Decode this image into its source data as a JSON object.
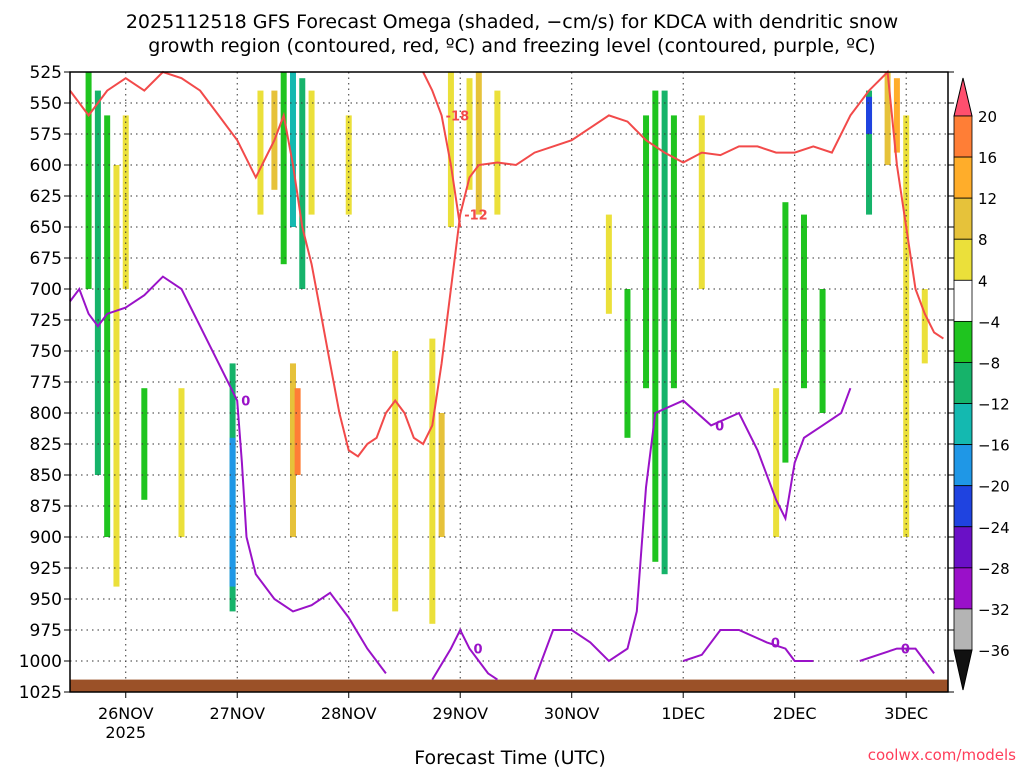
{
  "chart_data": {
    "type": "heatmap",
    "title_line1": "2025112518 GFS Forecast Omega (shaded, −cm/s) for KDCA with dendritic snow",
    "title_line2": "growth region (contoured, red, ºC) and freezing level (contoured, purple, ºC)",
    "xlabel": "Forecast Time (UTC)",
    "credit": "coolwx.com/models",
    "x_ticks": [
      "26NOV",
      "27NOV",
      "28NOV",
      "29NOV",
      "30NOV",
      "1DEC",
      "2DEC",
      "3DEC"
    ],
    "x_year_label": "2025",
    "x_range_hours": [
      -12,
      177
    ],
    "y_ticks": [
      525,
      550,
      575,
      600,
      625,
      650,
      675,
      700,
      725,
      750,
      775,
      800,
      825,
      850,
      875,
      900,
      925,
      950,
      975,
      1000,
      1025
    ],
    "y_range_hpa": [
      525,
      1025
    ],
    "colorbar": {
      "labels": [
        20,
        16,
        12,
        8,
        4,
        -4,
        -8,
        -12,
        -16,
        -20,
        -24,
        -28,
        -32,
        -36
      ],
      "colors": [
        "#ff4f6e",
        "#ff7e36",
        "#ffad2a",
        "#e6c23a",
        "#ebe03a",
        "#ffffff",
        "#1fc41f",
        "#16b36a",
        "#14b9b0",
        "#1f97e6",
        "#1f43e0",
        "#6a10c6",
        "#9a10c9",
        "#b4b4b4",
        "#111111"
      ]
    },
    "omega_cells": [
      {
        "h": -8,
        "p0": 525,
        "p1": 700,
        "v": -8
      },
      {
        "h": -6,
        "p0": 540,
        "p1": 850,
        "v": -12
      },
      {
        "h": -4,
        "p0": 560,
        "p1": 900,
        "v": -8
      },
      {
        "h": -2,
        "p0": 600,
        "p1": 940,
        "v": 4
      },
      {
        "h": 0,
        "p0": 560,
        "p1": 700,
        "v": 4
      },
      {
        "h": 4,
        "p0": 780,
        "p1": 870,
        "v": -8
      },
      {
        "h": 12,
        "p0": 780,
        "p1": 900,
        "v": 4
      },
      {
        "h": 23,
        "p0": 760,
        "p1": 960,
        "v": -12
      },
      {
        "h": 23,
        "p0": 820,
        "p1": 940,
        "v": -20
      },
      {
        "h": 29,
        "p0": 540,
        "p1": 640,
        "v": 4
      },
      {
        "h": 32,
        "p0": 540,
        "p1": 620,
        "v": 8
      },
      {
        "h": 34,
        "p0": 525,
        "p1": 680,
        "v": -8
      },
      {
        "h": 36,
        "p0": 525,
        "p1": 650,
        "v": -16
      },
      {
        "h": 38,
        "p0": 530,
        "p1": 700,
        "v": -12
      },
      {
        "h": 36,
        "p0": 760,
        "p1": 900,
        "v": 8
      },
      {
        "h": 37,
        "p0": 780,
        "p1": 850,
        "v": 16
      },
      {
        "h": 40,
        "p0": 540,
        "p1": 640,
        "v": 4
      },
      {
        "h": 48,
        "p0": 560,
        "p1": 640,
        "v": 4
      },
      {
        "h": 58,
        "p0": 750,
        "p1": 960,
        "v": 4
      },
      {
        "h": 66,
        "p0": 740,
        "p1": 970,
        "v": 4
      },
      {
        "h": 68,
        "p0": 800,
        "p1": 900,
        "v": 8
      },
      {
        "h": 70,
        "p0": 525,
        "p1": 650,
        "v": 4
      },
      {
        "h": 74,
        "p0": 530,
        "p1": 620,
        "v": 4
      },
      {
        "h": 76,
        "p0": 525,
        "p1": 640,
        "v": 8
      },
      {
        "h": 80,
        "p0": 540,
        "p1": 640,
        "v": 4
      },
      {
        "h": 104,
        "p0": 640,
        "p1": 720,
        "v": 4
      },
      {
        "h": 108,
        "p0": 700,
        "p1": 820,
        "v": -8
      },
      {
        "h": 112,
        "p0": 560,
        "p1": 780,
        "v": -8
      },
      {
        "h": 114,
        "p0": 540,
        "p1": 920,
        "v": -8
      },
      {
        "h": 116,
        "p0": 540,
        "p1": 930,
        "v": -12
      },
      {
        "h": 118,
        "p0": 560,
        "p1": 780,
        "v": -8
      },
      {
        "h": 124,
        "p0": 560,
        "p1": 700,
        "v": 4
      },
      {
        "h": 140,
        "p0": 780,
        "p1": 900,
        "v": 4
      },
      {
        "h": 142,
        "p0": 630,
        "p1": 840,
        "v": -8
      },
      {
        "h": 146,
        "p0": 640,
        "p1": 780,
        "v": -8
      },
      {
        "h": 150,
        "p0": 700,
        "p1": 800,
        "v": -8
      },
      {
        "h": 160,
        "p0": 540,
        "p1": 640,
        "v": -12
      },
      {
        "h": 160,
        "p0": 545,
        "p1": 575,
        "v": -24
      },
      {
        "h": 164,
        "p0": 525,
        "p1": 600,
        "v": 8
      },
      {
        "h": 166,
        "p0": 530,
        "p1": 590,
        "v": 12
      },
      {
        "h": 168,
        "p0": 560,
        "p1": 900,
        "v": 4
      },
      {
        "h": 172,
        "p0": 700,
        "p1": 760,
        "v": 4
      }
    ],
    "dgz_contours": [
      {
        "label": "-12",
        "points": [
          [
            -12,
            540
          ],
          [
            -8,
            560
          ],
          [
            -4,
            540
          ],
          [
            0,
            530
          ],
          [
            4,
            540
          ],
          [
            8,
            525
          ],
          [
            12,
            530
          ],
          [
            16,
            540
          ],
          [
            20,
            560
          ],
          [
            24,
            580
          ],
          [
            28,
            610
          ],
          [
            32,
            580
          ],
          [
            34,
            560
          ],
          [
            36,
            600
          ],
          [
            38,
            650
          ],
          [
            40,
            680
          ],
          [
            42,
            720
          ],
          [
            44,
            760
          ],
          [
            46,
            800
          ],
          [
            48,
            830
          ],
          [
            50,
            835
          ],
          [
            52,
            825
          ],
          [
            54,
            820
          ],
          [
            56,
            800
          ],
          [
            58,
            790
          ],
          [
            60,
            800
          ],
          [
            62,
            820
          ],
          [
            64,
            825
          ],
          [
            66,
            810
          ],
          [
            68,
            760
          ],
          [
            70,
            700
          ],
          [
            72,
            640
          ],
          [
            74,
            610
          ],
          [
            76,
            600
          ],
          [
            80,
            598
          ],
          [
            84,
            600
          ],
          [
            88,
            590
          ],
          [
            92,
            585
          ],
          [
            96,
            580
          ],
          [
            100,
            570
          ],
          [
            104,
            560
          ],
          [
            108,
            565
          ],
          [
            112,
            580
          ],
          [
            116,
            590
          ],
          [
            120,
            598
          ],
          [
            124,
            590
          ],
          [
            128,
            592
          ],
          [
            132,
            585
          ],
          [
            136,
            585
          ],
          [
            140,
            590
          ],
          [
            144,
            590
          ],
          [
            148,
            585
          ],
          [
            152,
            590
          ],
          [
            156,
            560
          ],
          [
            160,
            540
          ],
          [
            164,
            525
          ],
          [
            166,
            600
          ],
          [
            168,
            650
          ],
          [
            170,
            700
          ],
          [
            172,
            720
          ],
          [
            174,
            735
          ],
          [
            176,
            740
          ]
        ]
      },
      {
        "label": "-18",
        "points": [
          [
            64,
            525
          ],
          [
            66,
            540
          ],
          [
            68,
            560
          ],
          [
            70,
            600
          ],
          [
            72,
            650
          ]
        ]
      }
    ],
    "freezing_contours": [
      {
        "label": "0",
        "points": [
          [
            -12,
            710
          ],
          [
            -10,
            700
          ],
          [
            -8,
            720
          ],
          [
            -6,
            730
          ],
          [
            -4,
            720
          ],
          [
            0,
            715
          ],
          [
            4,
            705
          ],
          [
            8,
            690
          ],
          [
            12,
            700
          ],
          [
            16,
            730
          ],
          [
            20,
            760
          ],
          [
            24,
            790
          ],
          [
            25,
            840
          ],
          [
            26,
            900
          ],
          [
            28,
            930
          ],
          [
            32,
            950
          ],
          [
            36,
            960
          ],
          [
            40,
            955
          ],
          [
            44,
            945
          ],
          [
            48,
            965
          ],
          [
            52,
            990
          ],
          [
            56,
            1010
          ]
        ]
      },
      {
        "label": "0",
        "points": [
          [
            66,
            1015
          ],
          [
            70,
            990
          ],
          [
            72,
            975
          ],
          [
            74,
            990
          ],
          [
            78,
            1010
          ],
          [
            80,
            1015
          ]
        ]
      },
      {
        "label": "0",
        "points": [
          [
            88,
            1015
          ],
          [
            92,
            975
          ],
          [
            96,
            975
          ],
          [
            100,
            985
          ],
          [
            104,
            1000
          ],
          [
            108,
            990
          ],
          [
            110,
            960
          ],
          [
            112,
            860
          ],
          [
            114,
            800
          ],
          [
            120,
            790
          ],
          [
            126,
            810
          ],
          [
            132,
            800
          ],
          [
            136,
            830
          ],
          [
            140,
            870
          ],
          [
            142,
            885
          ],
          [
            144,
            840
          ],
          [
            146,
            820
          ],
          [
            150,
            810
          ],
          [
            154,
            800
          ],
          [
            156,
            780
          ]
        ]
      },
      {
        "label": "0",
        "points": [
          [
            120,
            1000
          ],
          [
            124,
            995
          ],
          [
            128,
            975
          ],
          [
            132,
            975
          ],
          [
            138,
            985
          ],
          [
            142,
            990
          ],
          [
            144,
            1000
          ],
          [
            148,
            1000
          ]
        ]
      },
      {
        "label": "0",
        "points": [
          [
            158,
            1000
          ],
          [
            162,
            995
          ],
          [
            166,
            990
          ],
          [
            170,
            990
          ],
          [
            174,
            1010
          ]
        ]
      }
    ],
    "terrain_hpa": 1015
  }
}
